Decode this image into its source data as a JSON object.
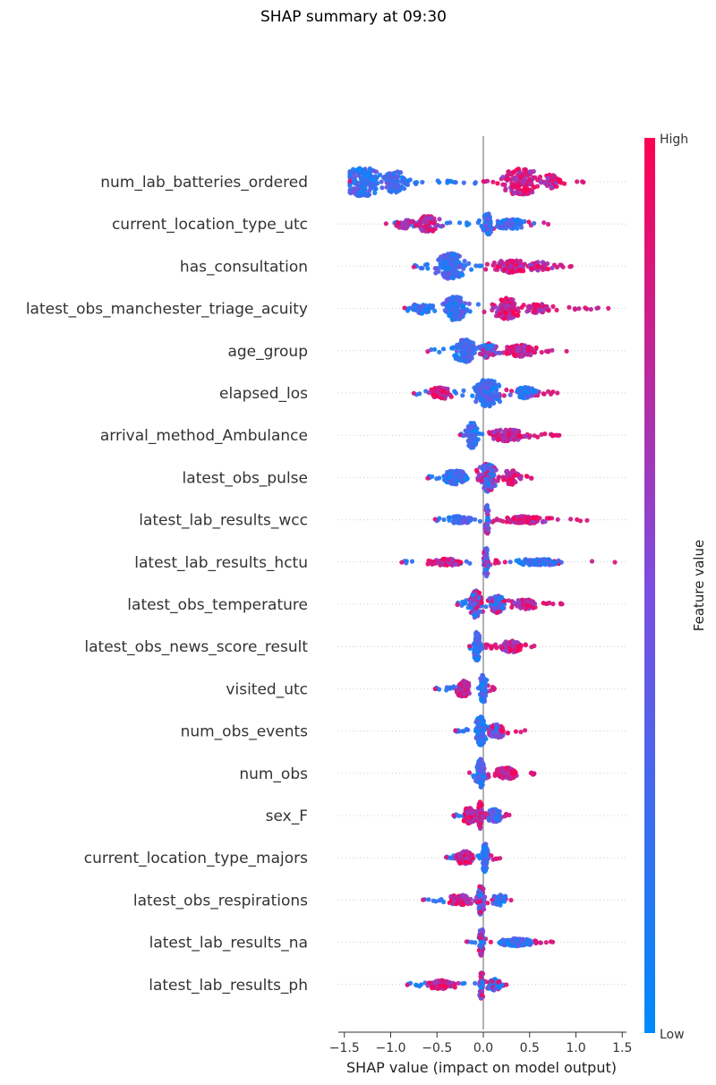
{
  "chart_data": {
    "type": "scatter",
    "subtype": "beeswarm",
    "title": "SHAP summary at 09:30",
    "xlabel": "SHAP value (impact on model output)",
    "xlim": [
      -1.5,
      1.5
    ],
    "xticks": [
      -1.5,
      -1.0,
      -0.5,
      0.0,
      0.5,
      1.0,
      1.5
    ],
    "xtick_labels": [
      "−1.5",
      "−1.0",
      "−0.5",
      "0.0",
      "0.5",
      "1.0",
      "1.5"
    ],
    "colorbar": {
      "label": "Feature value",
      "high_label": "High",
      "low_label": "Low",
      "low_color": "#008bfb",
      "mid_color": "#7c4de0",
      "high_color": "#ff0052"
    },
    "zero_line_color": "#999999",
    "features": [
      {
        "name": "num_lab_batteries_ordered",
        "lo": -1.44,
        "hi": 1.08,
        "n": 460,
        "blobs": [
          {
            "c": -1.3,
            "w": 0.22,
            "h": 1.0,
            "m": 0.5,
            "d": -1
          },
          {
            "c": -0.95,
            "w": 0.15,
            "h": 0.75,
            "m": 0.45,
            "d": -1
          },
          {
            "c": 0.4,
            "w": 0.22,
            "h": 0.95,
            "m": 0.5,
            "d": 1
          },
          {
            "c": 0.75,
            "w": 0.14,
            "h": 0.5,
            "m": 0.5,
            "d": 1
          }
        ]
      },
      {
        "name": "current_location_type_utc",
        "lo": -1.05,
        "hi": 0.7,
        "n": 300,
        "blobs": [
          {
            "c": -0.6,
            "w": 0.15,
            "h": 0.55,
            "m": 0.5,
            "d": 1
          },
          {
            "c": -0.85,
            "w": 0.12,
            "h": 0.3,
            "m": 0.5,
            "d": 1
          },
          {
            "c": 0.05,
            "w": 0.06,
            "h": 0.75,
            "m": 0.45,
            "d": -1
          },
          {
            "c": 0.3,
            "w": 0.18,
            "h": 0.35,
            "m": 0.5,
            "d": -1
          }
        ]
      },
      {
        "name": "has_consultation",
        "lo": -0.75,
        "hi": 0.95,
        "n": 320,
        "blobs": [
          {
            "c": -0.35,
            "w": 0.16,
            "h": 0.9,
            "m": 0.5,
            "d": -1
          },
          {
            "c": 0.3,
            "w": 0.2,
            "h": 0.45,
            "m": 0.5,
            "d": 1
          },
          {
            "c": 0.6,
            "w": 0.14,
            "h": 0.3,
            "m": 0.5,
            "d": 1
          }
        ]
      },
      {
        "name": "latest_obs_manchester_triage_acuity",
        "lo": -0.85,
        "hi": 1.35,
        "n": 360,
        "blobs": [
          {
            "c": -0.3,
            "w": 0.15,
            "h": 0.85,
            "m": 0.45,
            "d": -1
          },
          {
            "c": -0.65,
            "w": 0.16,
            "h": 0.35,
            "m": 0.45,
            "d": -1
          },
          {
            "c": 0.25,
            "w": 0.15,
            "h": 0.75,
            "m": 0.55,
            "d": 1
          },
          {
            "c": 0.6,
            "w": 0.18,
            "h": 0.3,
            "m": 0.5,
            "d": 1
          }
        ]
      },
      {
        "name": "age_group",
        "lo": -0.6,
        "hi": 0.9,
        "n": 300,
        "blobs": [
          {
            "c": -0.2,
            "w": 0.12,
            "h": 0.8,
            "m": 0.4,
            "d": -1
          },
          {
            "c": 0.05,
            "w": 0.1,
            "h": 0.5,
            "m": 0.4,
            "d": 0
          },
          {
            "c": 0.4,
            "w": 0.18,
            "h": 0.4,
            "m": 0.5,
            "d": 1
          }
        ]
      },
      {
        "name": "elapsed_los",
        "lo": -0.75,
        "hi": 0.8,
        "n": 330,
        "blobs": [
          {
            "c": 0.05,
            "w": 0.15,
            "h": 0.95,
            "m": 0.45,
            "d": -1
          },
          {
            "c": -0.45,
            "w": 0.15,
            "h": 0.4,
            "m": 0.5,
            "d": 1
          },
          {
            "c": 0.45,
            "w": 0.14,
            "h": 0.4,
            "m": 0.5,
            "d": -1
          }
        ]
      },
      {
        "name": "arrival_method_Ambulance",
        "lo": -0.25,
        "hi": 0.82,
        "n": 260,
        "blobs": [
          {
            "c": -0.12,
            "w": 0.07,
            "h": 0.9,
            "m": 0.4,
            "d": -1
          },
          {
            "c": 0.25,
            "w": 0.2,
            "h": 0.4,
            "m": 0.5,
            "d": 1
          }
        ]
      },
      {
        "name": "latest_obs_pulse",
        "lo": -0.6,
        "hi": 0.52,
        "n": 300,
        "blobs": [
          {
            "c": 0.05,
            "w": 0.12,
            "h": 1.0,
            "m": 0.5,
            "d": 0
          },
          {
            "c": -0.3,
            "w": 0.14,
            "h": 0.5,
            "m": 0.45,
            "d": -1
          },
          {
            "c": 0.3,
            "w": 0.1,
            "h": 0.5,
            "m": 0.5,
            "d": 1
          }
        ]
      },
      {
        "name": "latest_lab_results_wcc",
        "lo": -0.52,
        "hi": 1.12,
        "n": 220,
        "blobs": [
          {
            "c": 0.04,
            "w": 0.03,
            "h": 1.0,
            "m": 0.45,
            "d": 0
          },
          {
            "c": -0.25,
            "w": 0.15,
            "h": 0.25,
            "m": 0.4,
            "d": -1
          },
          {
            "c": 0.45,
            "w": 0.25,
            "h": 0.25,
            "m": 0.55,
            "d": 1
          }
        ]
      },
      {
        "name": "latest_lab_results_hctu",
        "lo": -0.88,
        "hi": 1.42,
        "n": 230,
        "blobs": [
          {
            "c": 0.03,
            "w": 0.03,
            "h": 1.0,
            "m": 0.45,
            "d": 0
          },
          {
            "c": -0.4,
            "w": 0.2,
            "h": 0.25,
            "m": 0.55,
            "d": 1
          },
          {
            "c": 0.6,
            "w": 0.3,
            "h": 0.22,
            "m": 0.45,
            "d": -1
          }
        ]
      },
      {
        "name": "latest_obs_temperature",
        "lo": -0.28,
        "hi": 0.85,
        "n": 270,
        "blobs": [
          {
            "c": -0.08,
            "w": 0.08,
            "h": 0.95,
            "m": 0.45,
            "d": 0
          },
          {
            "c": 0.15,
            "w": 0.1,
            "h": 0.6,
            "m": 0.5,
            "d": 0
          },
          {
            "c": 0.45,
            "w": 0.14,
            "h": 0.35,
            "m": 0.5,
            "d": 1
          }
        ]
      },
      {
        "name": "latest_obs_news_score_result",
        "lo": -0.15,
        "hi": 0.55,
        "n": 230,
        "blobs": [
          {
            "c": -0.07,
            "w": 0.04,
            "h": 1.0,
            "m": 0.4,
            "d": -1
          },
          {
            "c": 0.3,
            "w": 0.12,
            "h": 0.4,
            "m": 0.5,
            "d": 1
          }
        ]
      },
      {
        "name": "visited_utc",
        "lo": -0.52,
        "hi": 0.12,
        "n": 200,
        "blobs": [
          {
            "c": 0.0,
            "w": 0.04,
            "h": 1.0,
            "m": 0.4,
            "d": -1
          },
          {
            "c": -0.22,
            "w": 0.08,
            "h": 0.55,
            "m": 0.5,
            "d": 1
          }
        ]
      },
      {
        "name": "num_obs_events",
        "lo": -0.3,
        "hi": 0.45,
        "n": 230,
        "blobs": [
          {
            "c": -0.03,
            "w": 0.06,
            "h": 1.0,
            "m": 0.4,
            "d": -1
          },
          {
            "c": 0.15,
            "w": 0.1,
            "h": 0.45,
            "m": 0.5,
            "d": 0
          }
        ]
      },
      {
        "name": "num_obs",
        "lo": -0.15,
        "hi": 0.55,
        "n": 230,
        "blobs": [
          {
            "c": -0.03,
            "w": 0.05,
            "h": 1.0,
            "m": 0.4,
            "d": -1
          },
          {
            "c": 0.25,
            "w": 0.12,
            "h": 0.4,
            "m": 0.5,
            "d": 1
          }
        ]
      },
      {
        "name": "sex_F",
        "lo": -0.32,
        "hi": 0.28,
        "n": 220,
        "blobs": [
          {
            "c": -0.03,
            "w": 0.03,
            "h": 1.0,
            "m": 0.5,
            "d": 1
          },
          {
            "c": -0.15,
            "w": 0.08,
            "h": 0.55,
            "m": 0.5,
            "d": 1
          },
          {
            "c": 0.12,
            "w": 0.08,
            "h": 0.45,
            "m": 0.5,
            "d": -1
          }
        ]
      },
      {
        "name": "current_location_type_majors",
        "lo": -0.4,
        "hi": 0.18,
        "n": 210,
        "blobs": [
          {
            "c": 0.02,
            "w": 0.04,
            "h": 1.0,
            "m": 0.4,
            "d": -1
          },
          {
            "c": -0.2,
            "w": 0.1,
            "h": 0.45,
            "m": 0.5,
            "d": 1
          }
        ]
      },
      {
        "name": "latest_obs_respirations",
        "lo": -0.65,
        "hi": 0.3,
        "n": 210,
        "blobs": [
          {
            "c": -0.03,
            "w": 0.05,
            "h": 1.0,
            "m": 0.45,
            "d": 0
          },
          {
            "c": -0.25,
            "w": 0.15,
            "h": 0.35,
            "m": 0.5,
            "d": 1
          },
          {
            "c": 0.18,
            "w": 0.08,
            "h": 0.4,
            "m": 0.45,
            "d": -1
          }
        ]
      },
      {
        "name": "latest_lab_results_na",
        "lo": -0.18,
        "hi": 0.75,
        "n": 210,
        "blobs": [
          {
            "c": -0.02,
            "w": 0.03,
            "h": 1.0,
            "m": 0.5,
            "d": 0
          },
          {
            "c": 0.35,
            "w": 0.2,
            "h": 0.25,
            "m": 0.45,
            "d": -1
          }
        ]
      },
      {
        "name": "latest_lab_results_ph",
        "lo": -0.82,
        "hi": 0.25,
        "n": 210,
        "blobs": [
          {
            "c": -0.02,
            "w": 0.03,
            "h": 1.0,
            "m": 0.5,
            "d": 0
          },
          {
            "c": -0.45,
            "w": 0.18,
            "h": 0.3,
            "m": 0.55,
            "d": 1
          },
          {
            "c": 0.12,
            "w": 0.08,
            "h": 0.4,
            "m": 0.5,
            "d": 0
          }
        ]
      }
    ]
  }
}
